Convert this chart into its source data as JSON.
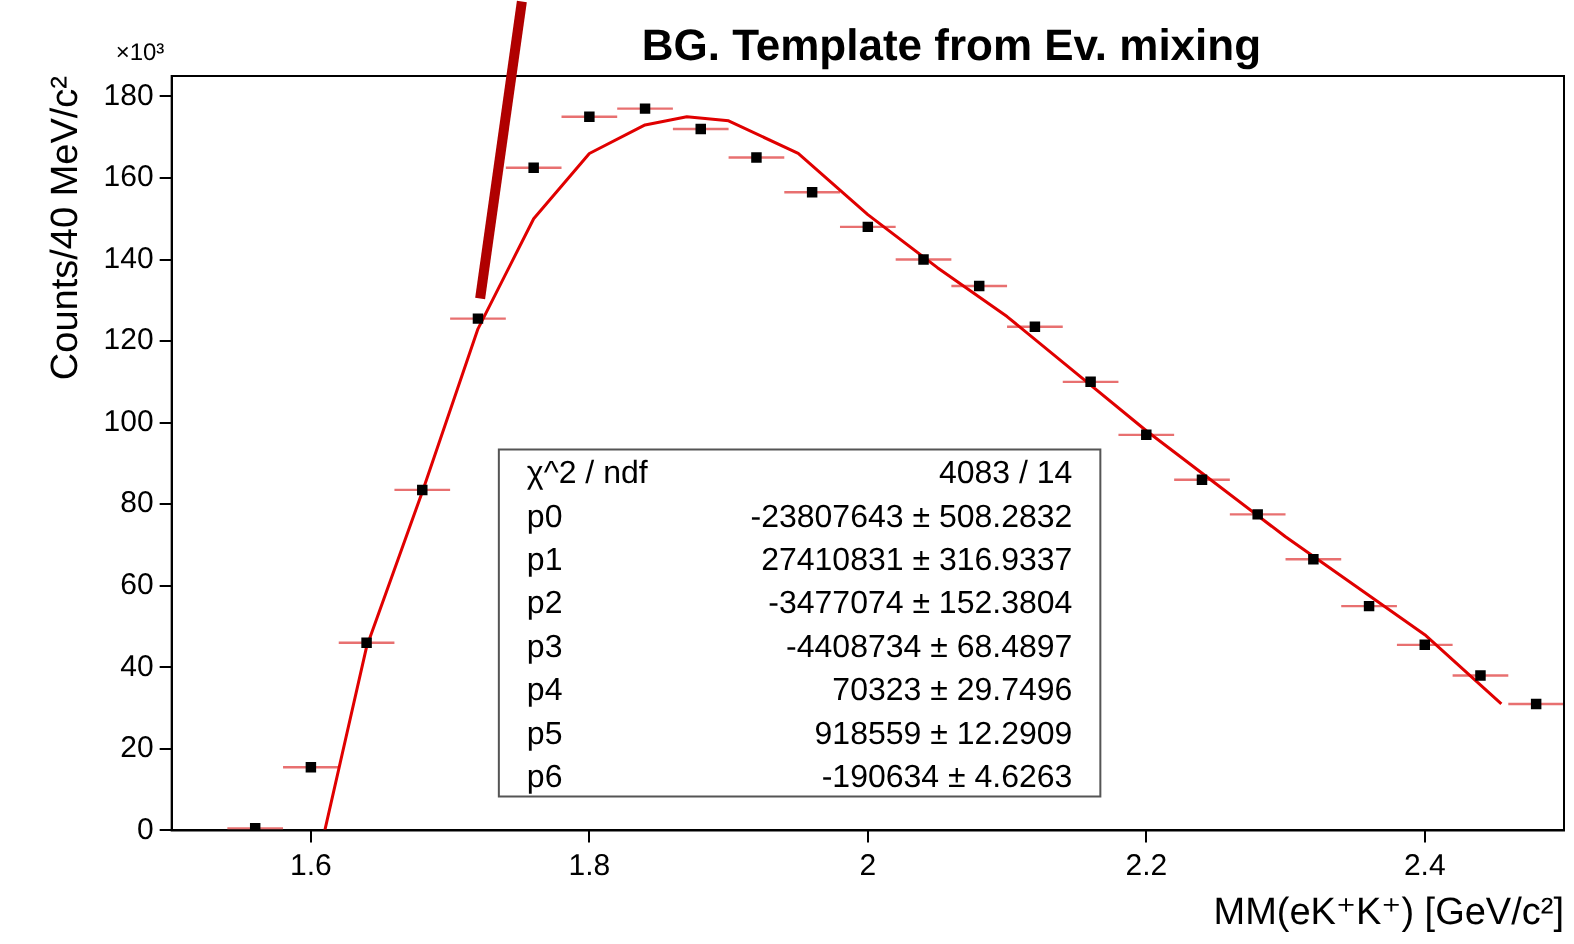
{
  "chart_data": {
    "type": "scatter",
    "title": "BG. Template from Ev. mixing",
    "xlabel": "MM(eK⁺K⁺) [GeV/c²]",
    "ylabel": "Counts/40 MeV/c²",
    "annotations": [
      "×10³",
      "χ^2 / ndf",
      "4083 / 14",
      "p0",
      "-23807643 ± 508.2832",
      "p1",
      "27410831 ± 316.9337",
      "p2",
      "-3477074 ± 152.3804",
      "p3",
      "-4408734 ± 68.4897",
      "p4",
      "70323 ± 29.7496",
      "p5",
      "918559 ± 12.2909",
      "p6",
      "-190634 ± 4.6263"
    ],
    "xlim": [
      1.5,
      2.5
    ],
    "xticks": [
      1.6,
      1.8,
      2,
      2.2,
      2.4
    ],
    "ylim": [
      0,
      185
    ],
    "yticks": [
      0,
      20,
      40,
      60,
      80,
      100,
      120,
      140,
      160,
      180
    ],
    "grid": false,
    "legend": false,
    "marker": "square",
    "series": [
      {
        "type": "scatter",
        "color": "#000000",
        "x": [
          1.56,
          1.6,
          1.64,
          1.68,
          1.72,
          1.76,
          1.8,
          1.84,
          1.88,
          1.92,
          1.96,
          2.0,
          2.04,
          2.08,
          2.12,
          2.16,
          2.2,
          2.24,
          2.28,
          2.32,
          2.36,
          2.4,
          2.44,
          2.48
        ],
        "values": [
          0.5,
          15.5,
          46,
          83.5,
          125.5,
          162.5,
          175,
          177,
          172,
          165,
          156.5,
          148,
          140,
          133.5,
          123.5,
          110,
          97,
          86,
          77.5,
          66.5,
          55,
          45.5,
          38,
          31
        ],
        "xerrors": [
          0.02,
          0.02,
          0.02,
          0.02,
          0.02,
          0.02,
          0.02,
          0.02,
          0.02,
          0.02,
          0.02,
          0.02,
          0.02,
          0.02,
          0.02,
          0.02,
          0.02,
          0.02,
          0.02,
          0.02,
          0.02,
          0.02,
          0.02,
          0.02
        ]
      },
      {
        "type": "line",
        "color": "#e00000",
        "marker": "none",
        "x": [
          1.61,
          1.64,
          1.68,
          1.72,
          1.76,
          1.8,
          1.84,
          1.87,
          1.9,
          1.95,
          2.0,
          2.05,
          2.1,
          2.15,
          2.2,
          2.25,
          2.3,
          2.35,
          2.4,
          2.455
        ],
        "values": [
          0,
          45,
          83,
          123,
          150,
          166,
          173,
          175,
          174,
          166,
          151,
          138,
          126,
          112,
          98,
          85,
          72,
          60,
          48,
          31
        ]
      }
    ]
  }
}
